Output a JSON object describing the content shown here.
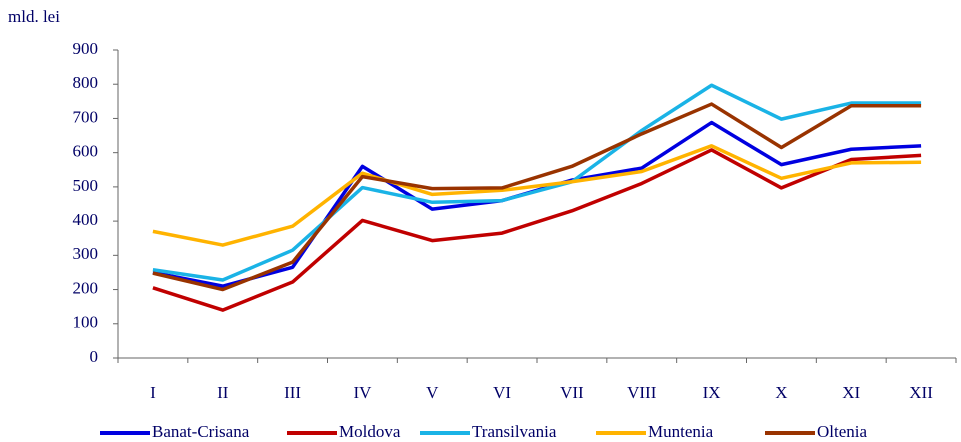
{
  "chart_data": {
    "type": "line",
    "y_label": "mld. lei",
    "categories": [
      "I",
      "II",
      "III",
      "IV",
      "V",
      "VI",
      "VII",
      "VIII",
      "IX",
      "X",
      "XI",
      "XII"
    ],
    "series": [
      {
        "name": "Banat-Crisana",
        "color": "#0000e0",
        "values": [
          250,
          210,
          265,
          560,
          435,
          460,
          520,
          555,
          688,
          565,
          610,
          620
        ]
      },
      {
        "name": "Moldova",
        "color": "#c00000",
        "values": [
          205,
          140,
          222,
          402,
          343,
          365,
          430,
          510,
          608,
          497,
          580,
          592
        ]
      },
      {
        "name": "Transilvania",
        "color": "#1ab3e6",
        "values": [
          258,
          228,
          315,
          498,
          455,
          460,
          515,
          665,
          797,
          698,
          745,
          745
        ]
      },
      {
        "name": "Muntenia",
        "color": "#ffb300",
        "values": [
          370,
          330,
          385,
          540,
          478,
          490,
          515,
          545,
          620,
          525,
          570,
          572
        ]
      },
      {
        "name": "Oltenia",
        "color": "#993300",
        "values": [
          248,
          200,
          280,
          530,
          495,
          497,
          560,
          655,
          742,
          615,
          737,
          737
        ]
      }
    ],
    "ylim": [
      0,
      900
    ],
    "yticks": [
      0,
      100,
      200,
      300,
      400,
      500,
      600,
      700,
      800,
      900
    ]
  }
}
